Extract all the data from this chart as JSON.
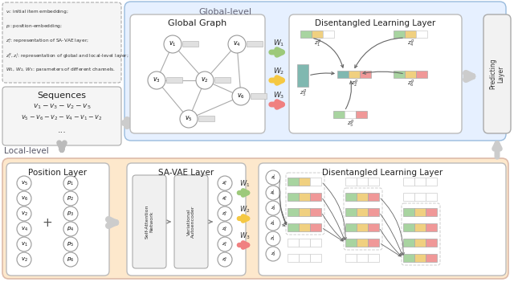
{
  "global_level_label": "Global-level",
  "local_level_label": "Local-level",
  "global_graph_title": "Global Graph",
  "disentangled_title": "Disentangled Learning Layer",
  "predicting_label": "Predicting\nLayer",
  "position_layer_title": "Position Layer",
  "savae_layer_title": "SA-VAE Layer",
  "sequences_title": "Sequences",
  "w1_color": "#9dc97a",
  "w2_color": "#f5c842",
  "w3_color": "#f08080",
  "green_color": "#a8d4a0",
  "yellow_color": "#f0d080",
  "red_color": "#f09898",
  "teal_color": "#80b8b0",
  "bg_global": "#ddeeff",
  "bg_local": "#fde8cc",
  "node_fill": "#ffffff",
  "node_edge": "#999999",
  "box_bg": "#ffffff",
  "box_edge": "#bbbbbb",
  "legend_bg": "#f5f5f5",
  "seq_bg": "#f5f5f5",
  "arrow_gray": "#cccccc",
  "graph_edge_color": "#aaaaaa",
  "v_nodes_local": [
    "$v_5$",
    "$v_6$",
    "$v_2$",
    "$v_4$",
    "$v_1$",
    "$v_2$"
  ],
  "p_nodes_local": [
    "$p_1$",
    "$p_2$",
    "$p_3$",
    "$p_4$",
    "$p_5$",
    "$p_6$"
  ],
  "z_s_labels": [
    "$z_5^s$",
    "$z_6^s$",
    "$z_2^s$",
    "$z_4^s$",
    "$z_1^s$",
    "$z_2^s$"
  ]
}
